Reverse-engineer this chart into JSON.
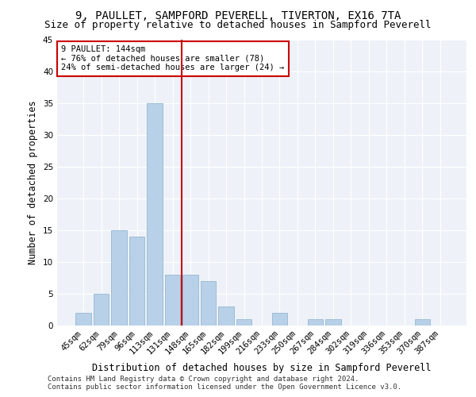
{
  "title": "9, PAULLET, SAMPFORD PEVERELL, TIVERTON, EX16 7TA",
  "subtitle": "Size of property relative to detached houses in Sampford Peverell",
  "xlabel": "Distribution of detached houses by size in Sampford Peverell",
  "ylabel": "Number of detached properties",
  "categories": [
    "45sqm",
    "62sqm",
    "79sqm",
    "96sqm",
    "113sqm",
    "131sqm",
    "148sqm",
    "165sqm",
    "182sqm",
    "199sqm",
    "216sqm",
    "233sqm",
    "250sqm",
    "267sqm",
    "284sqm",
    "302sqm",
    "319sqm",
    "336sqm",
    "353sqm",
    "370sqm",
    "387sqm"
  ],
  "values": [
    2,
    5,
    15,
    14,
    35,
    8,
    8,
    7,
    3,
    1,
    0,
    2,
    0,
    1,
    1,
    0,
    0,
    0,
    0,
    1,
    0
  ],
  "bar_color": "#b8d0e8",
  "bar_edge_color": "#8ab0cc",
  "vline_color": "#cc0000",
  "vline_pos": 5.5,
  "annotation_text": "9 PAULLET: 144sqm\n← 76% of detached houses are smaller (78)\n24% of semi-detached houses are larger (24) →",
  "annotation_box_color": "#cc0000",
  "ylim": [
    0,
    45
  ],
  "yticks": [
    0,
    5,
    10,
    15,
    20,
    25,
    30,
    35,
    40,
    45
  ],
  "background_color": "#eef2f8",
  "footer_line1": "Contains HM Land Registry data © Crown copyright and database right 2024.",
  "footer_line2": "Contains public sector information licensed under the Open Government Licence v3.0.",
  "title_fontsize": 10,
  "subtitle_fontsize": 9,
  "xlabel_fontsize": 8.5,
  "ylabel_fontsize": 8.5,
  "tick_fontsize": 7.5,
  "annotation_fontsize": 7.5,
  "footer_fontsize": 6.5
}
